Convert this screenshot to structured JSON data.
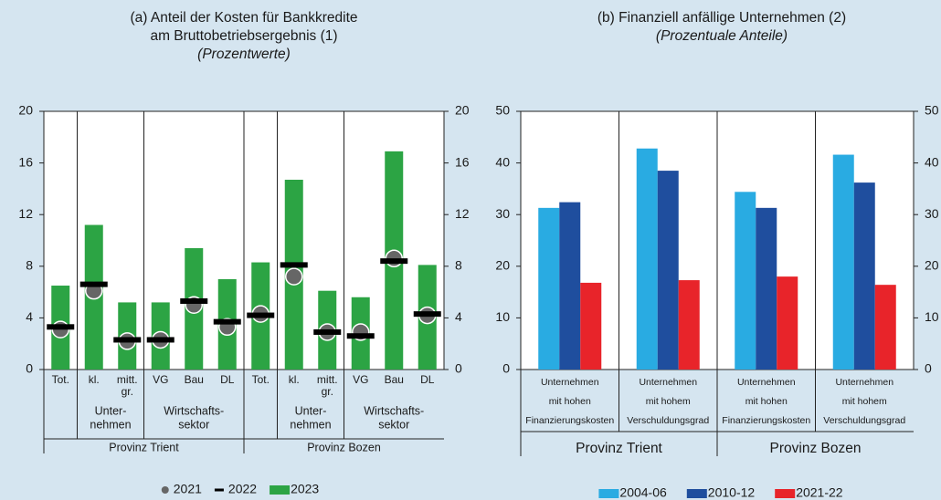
{
  "chart_data": [
    {
      "type": "bar",
      "title": [
        "(a) Anteil der Kosten für Bankkredite",
        "am Bruttobetriebsergebnis (1)"
      ],
      "subtitle": "(Prozentwerte)",
      "categories": [
        [
          "Tot."
        ],
        [
          "kl."
        ],
        [
          "mitt.",
          "gr."
        ],
        [
          "VG"
        ],
        [
          "Bau"
        ],
        [
          "DL"
        ],
        [
          "Tot."
        ],
        [
          "kl."
        ],
        [
          "mitt.",
          "gr."
        ],
        [
          "VG"
        ],
        [
          "Bau"
        ],
        [
          "DL"
        ]
      ],
      "groups": [
        {
          "label": [
            "Unter-",
            "nehmen"
          ],
          "from": 1,
          "to": 2
        },
        {
          "label": [
            "Wirtschafts-",
            "sektor"
          ],
          "from": 3,
          "to": 5
        },
        {
          "label": [
            "Unter-",
            "nehmen"
          ],
          "from": 7,
          "to": 8
        },
        {
          "label": [
            "Wirtschafts-",
            "sektor"
          ],
          "from": 9,
          "to": 11
        }
      ],
      "provinces": [
        {
          "label": "Provinz Trient",
          "from": 0,
          "to": 5
        },
        {
          "label": "Provinz Bozen",
          "from": 6,
          "to": 11
        }
      ],
      "series": [
        {
          "name": "2021",
          "marker": "circle",
          "color": "#666666",
          "values": [
            3.1,
            6.1,
            2.2,
            2.3,
            5.0,
            3.3,
            4.3,
            7.2,
            2.9,
            2.9,
            8.6,
            4.2
          ]
        },
        {
          "name": "2022",
          "marker": "dash",
          "color": "#000000",
          "values": [
            3.3,
            6.6,
            2.3,
            2.3,
            5.3,
            3.7,
            4.2,
            8.1,
            2.9,
            2.6,
            8.4,
            4.3
          ]
        },
        {
          "name": "2023",
          "marker": "bar",
          "color": "#2ca444",
          "values": [
            6.5,
            11.2,
            5.2,
            5.2,
            9.4,
            7.0,
            8.3,
            14.7,
            6.1,
            5.6,
            16.9,
            8.1
          ]
        }
      ],
      "ylim": [
        0,
        20
      ],
      "yticks": [
        0,
        4,
        8,
        12,
        16,
        20
      ],
      "right_axis": true
    },
    {
      "type": "bar",
      "title": [
        "(b) Finanziell anfällige Unternehmen (2)"
      ],
      "subtitle": "(Prozentuale Anteile)",
      "categories": [
        [
          "Unternehmen",
          "mit hohen",
          "Finanzierungskosten"
        ],
        [
          "Unternehmen",
          "mit hohem",
          "Verschuldungsgrad"
        ],
        [
          "Unternehmen",
          "mit hohen",
          "Finanzierungskosten"
        ],
        [
          "Unternehmen",
          "mit hohem",
          "Verschuldungsgrad"
        ]
      ],
      "provinces": [
        {
          "label": "Provinz Trient",
          "from": 0,
          "to": 1
        },
        {
          "label": "Provinz Bozen",
          "from": 2,
          "to": 3
        }
      ],
      "series": [
        {
          "name": "2004-06",
          "marker": "bar",
          "color": "#29abe2",
          "values": [
            31.3,
            42.8,
            34.4,
            41.6
          ]
        },
        {
          "name": "2010-12",
          "marker": "bar",
          "color": "#1f4e9e",
          "values": [
            32.4,
            38.5,
            31.3,
            36.2
          ]
        },
        {
          "name": "2021-22",
          "marker": "bar",
          "color": "#e8242a",
          "values": [
            16.8,
            17.3,
            18.0,
            16.4
          ]
        }
      ],
      "ylim": [
        0,
        50
      ],
      "yticks": [
        0,
        10,
        20,
        30,
        40,
        50
      ],
      "right_axis": true
    }
  ]
}
